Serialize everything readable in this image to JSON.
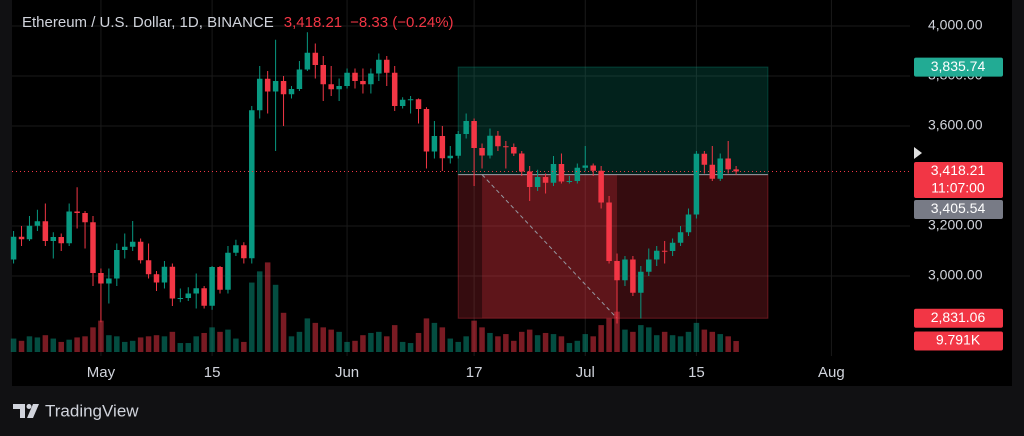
{
  "chart_data": {
    "type": "candlestick",
    "title": "Ethereum / U.S. Dollar, 1D, BINANCE",
    "price": "3,418.21",
    "change": "−8.33 (−0.24%)",
    "up_color": "#089981",
    "down_color": "#f23645",
    "x": [
      -11,
      -10,
      -9,
      -8,
      -7,
      -6,
      -5,
      -4,
      -3,
      -2,
      -1,
      0,
      1,
      2,
      3,
      4,
      5,
      6,
      7,
      8,
      9,
      10,
      11,
      12,
      13,
      14,
      15,
      16,
      17,
      18,
      19,
      20,
      21,
      22,
      23,
      24,
      25,
      26,
      27,
      28,
      29,
      30,
      31,
      32,
      33,
      34,
      35,
      36,
      37,
      38,
      39,
      40,
      41,
      42,
      43,
      44,
      45,
      46,
      47,
      48,
      49,
      50,
      51,
      52,
      53,
      54,
      55,
      56,
      57,
      58,
      59,
      60,
      61,
      62,
      63,
      64,
      65,
      66,
      67,
      68,
      69,
      70,
      71,
      72,
      73,
      74,
      75,
      76,
      77,
      78,
      79,
      80
    ],
    "open": [
      3066,
      3157,
      3147,
      3201,
      3219,
      3140,
      3156,
      3131,
      3258,
      3252,
      3215,
      3012,
      2970,
      2990,
      3104,
      3117,
      3137,
      3063,
      3007,
      2974,
      3037,
      2910,
      2912,
      2930,
      2951,
      2881,
      3036,
      2945,
      3093,
      3123,
      3071,
      3663,
      3789,
      3738,
      3780,
      3727,
      3748,
      3826,
      3893,
      3844,
      3767,
      3747,
      3760,
      3813,
      3780,
      3767,
      3810,
      3865,
      3813,
      3680,
      3705,
      3707,
      3668,
      3498,
      3560,
      3471,
      3481,
      3568,
      3620,
      3512,
      3482,
      3561,
      3519,
      3516,
      3490,
      3418,
      3356,
      3396,
      3373,
      3448,
      3378,
      3380,
      3433,
      3442,
      3421,
      3294,
      3060,
      2983,
      3066,
      2933,
      3017,
      3066,
      3101,
      3100,
      3133,
      3175,
      3246,
      3489,
      3445,
      3389,
      3470,
      3426.54
    ],
    "high": [
      3180,
      3200,
      3240,
      3265,
      3290,
      3175,
      3170,
      3290,
      3355,
      3260,
      3240,
      3030,
      3030,
      3130,
      3170,
      3220,
      3150,
      3130,
      3020,
      3060,
      3050,
      2950,
      2955,
      3010,
      2960,
      3040,
      3040,
      3120,
      3145,
      3135,
      3680,
      3840,
      3820,
      3945,
      3800,
      3760,
      3860,
      3975,
      3930,
      3880,
      3840,
      3790,
      3830,
      3830,
      3830,
      3830,
      3890,
      3880,
      3840,
      3715,
      3720,
      3710,
      3675,
      3620,
      3600,
      3520,
      3580,
      3650,
      3630,
      3530,
      3590,
      3580,
      3540,
      3530,
      3500,
      3440,
      3425,
      3410,
      3480,
      3490,
      3400,
      3450,
      3520,
      3450,
      3440,
      3320,
      3090,
      3080,
      3080,
      3040,
      3110,
      3120,
      3140,
      3150,
      3200,
      3270,
      3500,
      3500,
      3520,
      3490,
      3540,
      3440
    ],
    "low": [
      3050,
      3120,
      3140,
      3180,
      3120,
      3070,
      3100,
      3120,
      3190,
      3110,
      2960,
      2815,
      2890,
      2960,
      3070,
      3100,
      3050,
      2990,
      2940,
      2950,
      2880,
      2895,
      2900,
      2870,
      2870,
      2865,
      2930,
      2930,
      3080,
      3050,
      3050,
      3630,
      3650,
      3500,
      3600,
      3710,
      3740,
      3820,
      3790,
      3700,
      3720,
      3700,
      3750,
      3750,
      3730,
      3730,
      3780,
      3760,
      3660,
      3670,
      3650,
      3610,
      3430,
      3470,
      3420,
      3450,
      3470,
      3550,
      3360,
      3430,
      3470,
      3500,
      3430,
      3480,
      3400,
      3300,
      3340,
      3330,
      3360,
      3370,
      3370,
      3370,
      3420,
      3400,
      3270,
      3050,
      2810,
      2960,
      2920,
      2830,
      3000,
      3040,
      3050,
      3080,
      3120,
      3160,
      3230,
      3410,
      3380,
      3380,
      3410,
      3405
    ],
    "close": [
      3157,
      3147,
      3201,
      3219,
      3140,
      3156,
      3131,
      3258,
      3252,
      3215,
      3012,
      2970,
      2990,
      3104,
      3117,
      3137,
      3063,
      3007,
      2974,
      3037,
      2910,
      2912,
      2930,
      2951,
      2881,
      3036,
      2945,
      3093,
      3123,
      3071,
      3663,
      3789,
      3738,
      3780,
      3727,
      3748,
      3826,
      3893,
      3844,
      3767,
      3747,
      3760,
      3813,
      3780,
      3767,
      3810,
      3865,
      3813,
      3680,
      3705,
      3707,
      3668,
      3498,
      3560,
      3471,
      3481,
      3568,
      3620,
      3512,
      3482,
      3561,
      3519,
      3516,
      3490,
      3418,
      3356,
      3396,
      3373,
      3448,
      3378,
      3380,
      3433,
      3442,
      3421,
      3294,
      3060,
      2983,
      3066,
      2933,
      3017,
      3066,
      3101,
      3100,
      3133,
      3175,
      3246,
      3489,
      3445,
      3389,
      3470,
      3426.54,
      3418.21
    ],
    "volume": [
      12000,
      10000,
      14000,
      13000,
      15000,
      12000,
      9000,
      11000,
      13000,
      14000,
      22000,
      28000,
      15000,
      14000,
      9000,
      10000,
      13000,
      14000,
      15000,
      14000,
      18000,
      8000,
      8000,
      14000,
      17000,
      22000,
      18000,
      20000,
      12000,
      9000,
      62000,
      72000,
      80000,
      60000,
      35000,
      14000,
      18000,
      30000,
      26000,
      22000,
      20000,
      18000,
      9000,
      10000,
      15000,
      17000,
      18000,
      14000,
      24000,
      9000,
      8000,
      17000,
      30000,
      26000,
      22000,
      12000,
      9000,
      14000,
      28000,
      22000,
      17000,
      14000,
      16000,
      10000,
      18000,
      20000,
      15000,
      17000,
      16000,
      14000,
      8000,
      10000,
      16000,
      14000,
      24000,
      30000,
      36000,
      20000,
      18000,
      24000,
      22000,
      15000,
      18000,
      15000,
      14000,
      18000,
      26000,
      20000,
      18000,
      16000,
      14000,
      9791
    ],
    "xlim": [
      -11.2,
      101.9
    ],
    "xticks": [
      {
        "value": 0,
        "label": "May"
      },
      {
        "value": 14,
        "label": "15"
      },
      {
        "value": 31,
        "label": "Jun"
      },
      {
        "value": 47,
        "label": "17"
      },
      {
        "value": 61,
        "label": "Jul"
      },
      {
        "value": 75,
        "label": "15"
      },
      {
        "value": 92,
        "label": "Aug"
      }
    ],
    "ylim": [
      2696,
      4064
    ],
    "yticks": [
      {
        "value": 4000,
        "label": "4,000.00"
      },
      {
        "value": 3800,
        "label": "3,800.00"
      },
      {
        "value": 3600,
        "label": "3,600.00"
      },
      {
        "value": 3200,
        "label": "3,200.00"
      },
      {
        "value": 3000,
        "label": "3,000.00"
      }
    ],
    "volume_lim": [
      0,
      100000
    ],
    "grid": true,
    "position": {
      "x_start": 45,
      "x_end": 84,
      "entry": 3405.54,
      "target": 3835.74,
      "stop": 2831.06,
      "path_x": [
        48,
        65
      ]
    },
    "price_labels": [
      {
        "value": 3835.74,
        "label": "3,835.74",
        "color": "#22ab94"
      },
      {
        "value": 3418.21,
        "label": "3,418.21",
        "color": "#f23645",
        "sub": "11:07:00"
      },
      {
        "value": 3405.54,
        "label": "3,405.54",
        "color": "#787b86"
      },
      {
        "value": 2831.06,
        "label": "2,831.06",
        "color": "#f23645"
      }
    ],
    "volume_label": {
      "value": 9791,
      "label": "9.791K",
      "color": "#f23645"
    }
  },
  "brand": "TradingView"
}
